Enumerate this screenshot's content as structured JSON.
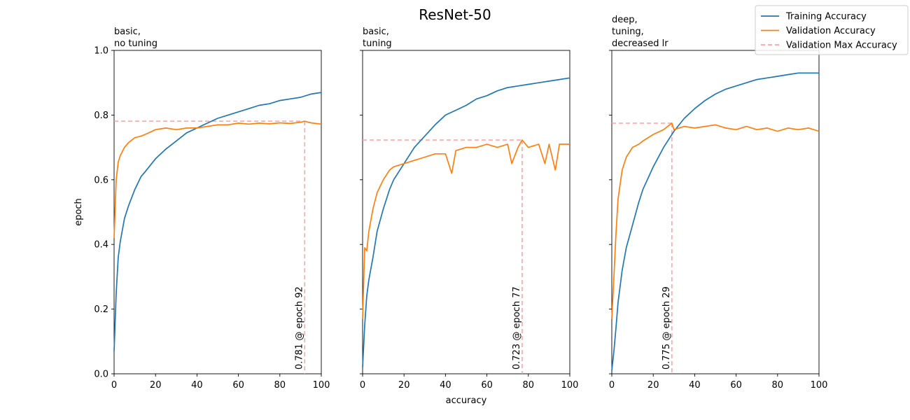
{
  "chart_data": {
    "type": "line",
    "title": "ResNet-50",
    "xlabel": "accuracy",
    "ylabel": "epoch",
    "xlim": [
      0,
      100
    ],
    "ylim": [
      0,
      1.0
    ],
    "xticks": [
      "0",
      "20",
      "40",
      "60",
      "80",
      "100"
    ],
    "yticks": [
      "0.0",
      "0.2",
      "0.4",
      "0.6",
      "0.8",
      "1.0"
    ],
    "legend": {
      "placement": "top-right",
      "entries": [
        {
          "name": "Training Accuracy",
          "color": "#1f77b4",
          "style": "solid"
        },
        {
          "name": "Validation Accuracy",
          "color": "#ff7f0e",
          "style": "solid"
        },
        {
          "name": "Validation Max Accuracy",
          "color": "#ff9f9f",
          "style": "dashed"
        }
      ]
    },
    "panels": [
      {
        "title": [
          "basic,",
          "no tuning"
        ],
        "annotation": "0.781 @ epoch 92",
        "max": {
          "epoch": 92,
          "value": 0.781
        },
        "series": [
          {
            "name": "Training Accuracy",
            "x": [
              0,
              1,
              2,
              3,
              5,
              7,
              10,
              13,
              15,
              20,
              25,
              30,
              35,
              40,
              45,
              50,
              55,
              60,
              65,
              70,
              75,
              80,
              85,
              90,
              95,
              100
            ],
            "y": [
              0.07,
              0.25,
              0.36,
              0.41,
              0.48,
              0.52,
              0.57,
              0.61,
              0.625,
              0.665,
              0.695,
              0.72,
              0.745,
              0.76,
              0.775,
              0.79,
              0.8,
              0.81,
              0.82,
              0.83,
              0.835,
              0.845,
              0.85,
              0.855,
              0.865,
              0.87
            ]
          },
          {
            "name": "Validation Accuracy",
            "x": [
              0,
              1,
              2,
              3,
              5,
              7,
              10,
              13,
              15,
              20,
              25,
              30,
              35,
              40,
              45,
              50,
              55,
              60,
              65,
              70,
              75,
              80,
              85,
              90,
              92,
              95,
              100
            ],
            "y": [
              0.42,
              0.6,
              0.655,
              0.675,
              0.7,
              0.715,
              0.73,
              0.735,
              0.74,
              0.755,
              0.76,
              0.755,
              0.76,
              0.76,
              0.765,
              0.77,
              0.77,
              0.775,
              0.772,
              0.775,
              0.773,
              0.776,
              0.774,
              0.778,
              0.781,
              0.776,
              0.772
            ]
          }
        ]
      },
      {
        "title": [
          "basic,",
          "tuning"
        ],
        "annotation": "0.723 @ epoch 77",
        "max": {
          "epoch": 77,
          "value": 0.723
        },
        "series": [
          {
            "name": "Training Accuracy",
            "x": [
              0,
              1,
              2,
              3,
              5,
              7,
              10,
              13,
              15,
              20,
              25,
              30,
              35,
              40,
              45,
              50,
              55,
              60,
              65,
              70,
              75,
              80,
              85,
              90,
              95,
              100
            ],
            "y": [
              0.02,
              0.15,
              0.24,
              0.29,
              0.36,
              0.44,
              0.51,
              0.57,
              0.6,
              0.65,
              0.7,
              0.735,
              0.77,
              0.8,
              0.815,
              0.83,
              0.85,
              0.86,
              0.875,
              0.885,
              0.89,
              0.895,
              0.9,
              0.905,
              0.91,
              0.915
            ]
          },
          {
            "name": "Validation Accuracy",
            "x": [
              0,
              1,
              2,
              3,
              5,
              7,
              10,
              13,
              15,
              20,
              25,
              30,
              35,
              40,
              43,
              45,
              50,
              55,
              60,
              65,
              70,
              72,
              75,
              77,
              80,
              85,
              88,
              90,
              93,
              95,
              100
            ],
            "y": [
              0.17,
              0.39,
              0.38,
              0.44,
              0.51,
              0.56,
              0.6,
              0.63,
              0.64,
              0.65,
              0.66,
              0.67,
              0.68,
              0.68,
              0.62,
              0.69,
              0.7,
              0.7,
              0.71,
              0.7,
              0.71,
              0.65,
              0.7,
              0.723,
              0.7,
              0.71,
              0.65,
              0.71,
              0.63,
              0.71,
              0.71
            ]
          }
        ]
      },
      {
        "title": [
          "deep,",
          "tuning,",
          "decreased lr"
        ],
        "annotation": "0.775 @ epoch 29",
        "max": {
          "epoch": 29,
          "value": 0.775
        },
        "series": [
          {
            "name": "Training Accuracy",
            "x": [
              0,
              1,
              2,
              3,
              5,
              7,
              10,
              13,
              15,
              20,
              25,
              30,
              35,
              40,
              45,
              50,
              55,
              60,
              65,
              70,
              75,
              80,
              85,
              90,
              95,
              100
            ],
            "y": [
              0.01,
              0.07,
              0.14,
              0.22,
              0.32,
              0.39,
              0.46,
              0.53,
              0.57,
              0.64,
              0.7,
              0.75,
              0.79,
              0.82,
              0.845,
              0.865,
              0.88,
              0.89,
              0.9,
              0.91,
              0.915,
              0.92,
              0.925,
              0.93,
              0.93,
              0.93
            ]
          },
          {
            "name": "Validation Accuracy",
            "x": [
              0,
              1,
              2,
              3,
              5,
              7,
              10,
              13,
              15,
              20,
              25,
              29,
              30,
              35,
              40,
              45,
              50,
              55,
              60,
              65,
              70,
              75,
              80,
              85,
              90,
              95,
              100
            ],
            "y": [
              0.17,
              0.3,
              0.43,
              0.54,
              0.63,
              0.67,
              0.7,
              0.71,
              0.72,
              0.74,
              0.755,
              0.775,
              0.755,
              0.765,
              0.76,
              0.765,
              0.77,
              0.76,
              0.755,
              0.765,
              0.755,
              0.76,
              0.75,
              0.76,
              0.755,
              0.76,
              0.75
            ]
          }
        ]
      }
    ]
  }
}
